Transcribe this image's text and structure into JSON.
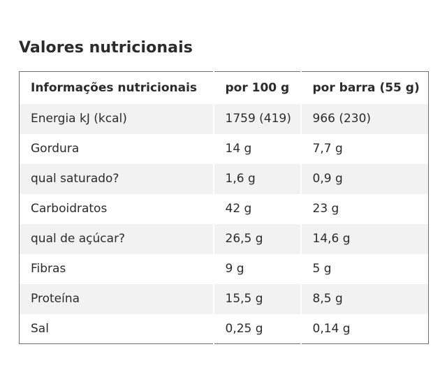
{
  "section": {
    "title": "Valores nutricionais"
  },
  "table": {
    "headers": [
      "Informações nutricionais",
      "por 100 g",
      "por barra (55 g)"
    ],
    "rows": [
      [
        "Energia kJ (kcal)",
        "1759 (419)",
        "966 (230)"
      ],
      [
        "Gordura",
        "14 g",
        "7,7 g"
      ],
      [
        "qual saturado?",
        "1,6 g",
        "0,9 g"
      ],
      [
        "Carboidratos",
        "42 g",
        "23 g"
      ],
      [
        "qual de açúcar?",
        "26,5 g",
        "14,6 g"
      ],
      [
        "Fibras",
        "9 g",
        "5 g"
      ],
      [
        "Proteína",
        "15,5 g",
        "8,5 g"
      ],
      [
        "Sal",
        "0,25 g",
        "0,14 g"
      ]
    ]
  },
  "colors": {
    "text": "#2b2b2b",
    "stripe": "#f2f2f2",
    "border": "#6e6e6e"
  }
}
